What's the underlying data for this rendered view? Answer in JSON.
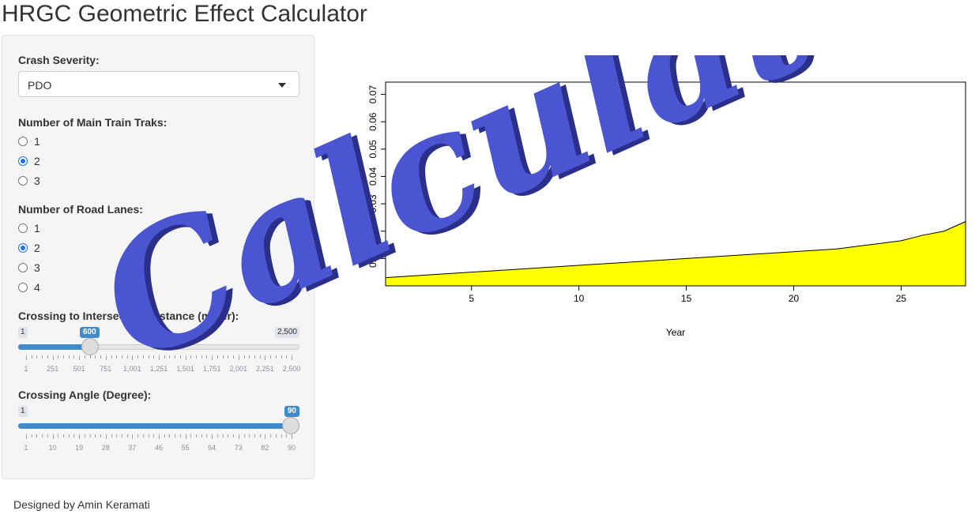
{
  "app": {
    "title": "HRGC Geometric Effect Calculator"
  },
  "sidebar": {
    "severity": {
      "label": "Crash Severity:",
      "value": "PDO"
    },
    "tracks": {
      "label": "Number of Main Train Traks:",
      "options": [
        "1",
        "2",
        "3"
      ],
      "selected": "2"
    },
    "lanes": {
      "label": "Number of Road Lanes:",
      "options": [
        "1",
        "2",
        "3",
        "4"
      ],
      "selected": "2"
    },
    "distance": {
      "label": "Crossing to Intersection Distance (meter):",
      "min_label": "1",
      "max_label": "2,500",
      "value_label": "600",
      "min": 1,
      "max": 2500,
      "value": 600,
      "ticks": [
        "1",
        "251",
        "501",
        "751",
        "1,001",
        "1,251",
        "1,501",
        "1,751",
        "2,001",
        "2,251",
        "2,500"
      ]
    },
    "angle": {
      "label": "Crossing Angle (Degree):",
      "min_label": "1",
      "max_label": "90",
      "value_label": "90",
      "min": 1,
      "max": 90,
      "value": 90,
      "ticks": [
        "1",
        "10",
        "19",
        "28",
        "37",
        "46",
        "55",
        "64",
        "73",
        "82",
        "90"
      ]
    }
  },
  "footer": {
    "credit": "Designed by Amin Keramati"
  },
  "watermark": {
    "text": "Calculator",
    "color": "#4b55d2"
  },
  "chart_data": {
    "type": "area",
    "xlabel": "Year",
    "ylabel": "",
    "xlim": [
      1,
      28
    ],
    "ylim": [
      0,
      0.0745
    ],
    "x_ticks": [
      5,
      10,
      15,
      20,
      25
    ],
    "y_ticks": [
      0.01,
      0.02,
      0.03,
      0.04,
      0.05,
      0.06,
      0.07
    ],
    "fill_color": "#ffff00",
    "x": [
      1,
      2,
      3,
      4,
      5,
      6,
      7,
      8,
      9,
      10,
      11,
      12,
      13,
      14,
      15,
      16,
      17,
      18,
      19,
      20,
      21,
      22,
      23,
      24,
      25,
      26,
      27,
      28
    ],
    "y": [
      0.003,
      0.0035,
      0.004,
      0.0045,
      0.005,
      0.0055,
      0.006,
      0.0065,
      0.007,
      0.0075,
      0.008,
      0.0085,
      0.009,
      0.0095,
      0.01,
      0.0105,
      0.011,
      0.0115,
      0.012,
      0.0125,
      0.013,
      0.0135,
      0.0145,
      0.0155,
      0.0165,
      0.0185,
      0.02,
      0.0235
    ]
  }
}
